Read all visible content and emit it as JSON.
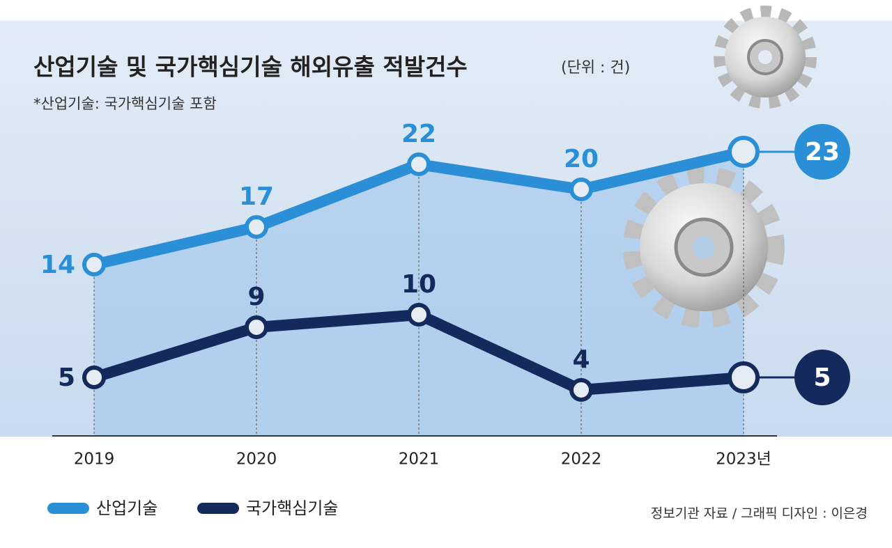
{
  "chart_data": {
    "type": "line",
    "title": "산업기술 및 국가핵심기술 해외유출 적발건수",
    "unit": "(단위 : 건)",
    "subtitle": "*산업기술: 국가핵심기술 포함",
    "source": "정보기관 자료 / 그래픽 디자인 : 이은경",
    "categories": [
      "2019",
      "2020",
      "2021",
      "2022",
      "2023년"
    ],
    "series": [
      {
        "name": "산업기술",
        "color": "#2a8fd6",
        "values": [
          14,
          17,
          22,
          20,
          23
        ]
      },
      {
        "name": "국가핵심기술",
        "color": "#14295c",
        "values": [
          5,
          9,
          10,
          4,
          5
        ]
      }
    ]
  }
}
